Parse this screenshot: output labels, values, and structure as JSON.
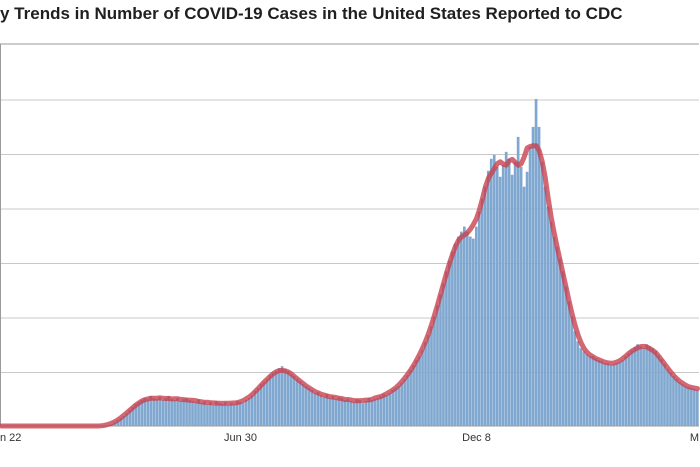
{
  "chart_data": {
    "type": "bar",
    "title": "y Trends in Number of COVID-19 Cases in the United States Reported to CDC",
    "x_tick_labels": [
      "n 22",
      "Jun 30",
      "Dec 8",
      "M"
    ],
    "y_tick_labels": [],
    "grid": true,
    "legend": "none",
    "colors": {
      "bars": "#7fa7cf",
      "bar_edge": "#5b86b3",
      "average_line": "#c8414f"
    },
    "series": [
      {
        "kind": "bar",
        "values": [
          0,
          0,
          0,
          0,
          0,
          0,
          0,
          0,
          0,
          0,
          0,
          0,
          0,
          0,
          0,
          0,
          0,
          0,
          0,
          0,
          0,
          0,
          0,
          0,
          0,
          0,
          0,
          0,
          0,
          0,
          0,
          0,
          0,
          0,
          0,
          0,
          1,
          2,
          4,
          6,
          8,
          10,
          13,
          16,
          19,
          22,
          24,
          26,
          28,
          27,
          30,
          28,
          27,
          29,
          26,
          28,
          30,
          27,
          26,
          28,
          25,
          27,
          28,
          26,
          25,
          24,
          27,
          23,
          25,
          22,
          24,
          21,
          25,
          23,
          22,
          24,
          21,
          23,
          22,
          25,
          24,
          23,
          26,
          28,
          31,
          35,
          38,
          42,
          44,
          47,
          51,
          53,
          55,
          58,
          60,
          57,
          55,
          52,
          50,
          47,
          45,
          42,
          40,
          38,
          36,
          33,
          34,
          31,
          29,
          32,
          28,
          30,
          27,
          29,
          28,
          26,
          27,
          25,
          24,
          27,
          26,
          23,
          25,
          28,
          26,
          27,
          28,
          30,
          32,
          31,
          33,
          36,
          38,
          40,
          43,
          47,
          51,
          56,
          61,
          66,
          70,
          76,
          84,
          91,
          100,
          110,
          121,
          132,
          143,
          155,
          166,
          175,
          183,
          190,
          195,
          200,
          195,
          190,
          188,
          200,
          215,
          228,
          240,
          256,
          268,
          272,
          260,
          250,
          262,
          275,
          268,
          252,
          265,
          290,
          260,
          240,
          255,
          280,
          300,
          328,
          300,
          265,
          240,
          220,
          205,
          190,
          180,
          168,
          155,
          140,
          125,
          110,
          95,
          85,
          78,
          75,
          72,
          70,
          70,
          68,
          66,
          65,
          63,
          63,
          61,
          62,
          63,
          64,
          66,
          70,
          73,
          76,
          79,
          82,
          80,
          78,
          82,
          80,
          78,
          75,
          71,
          67,
          62,
          57,
          53,
          50,
          47,
          44,
          42,
          40,
          39,
          38,
          37,
          36
        ]
      },
      {
        "kind": "line",
        "name": "",
        "values": [
          0,
          0,
          0,
          0,
          0,
          0,
          0,
          0,
          0,
          0,
          0,
          0,
          0,
          0,
          0,
          0,
          0,
          0,
          0,
          0,
          0,
          0,
          0,
          0,
          0,
          0,
          0,
          0,
          0,
          0,
          0,
          0,
          0,
          0,
          0,
          0,
          1,
          2,
          4,
          6,
          8,
          10,
          13,
          16,
          19,
          22,
          24,
          26,
          28,
          27,
          30,
          28,
          27,
          29,
          26,
          28,
          30,
          27,
          26,
          28,
          25,
          27,
          28,
          26,
          25,
          24,
          27,
          23,
          25,
          22,
          24,
          21,
          25,
          23,
          22,
          24,
          21,
          23,
          22,
          25,
          24,
          23,
          26,
          28,
          31,
          35,
          38,
          42,
          44,
          47,
          51,
          53,
          55,
          58,
          60,
          57,
          55,
          52,
          50,
          47,
          45,
          42,
          40,
          38,
          36,
          33,
          34,
          31,
          29,
          32,
          28,
          30,
          27,
          29,
          28,
          26,
          27,
          25,
          24,
          27,
          26,
          23,
          25,
          28,
          26,
          27,
          28,
          30,
          32,
          31,
          33,
          36,
          38,
          40,
          43,
          47,
          51,
          56,
          61,
          66,
          70,
          76,
          84,
          91,
          100,
          110,
          121,
          132,
          143,
          155,
          166,
          175,
          183,
          190,
          195,
          200,
          195,
          190,
          188,
          200,
          215,
          228,
          240,
          256,
          268,
          272,
          260,
          250,
          262,
          275,
          268,
          252,
          265,
          290,
          260,
          240,
          255,
          280,
          300,
          328,
          300,
          265,
          240,
          220,
          205,
          190,
          180,
          168,
          155,
          140,
          125,
          110,
          95,
          85,
          78,
          75,
          72,
          70,
          70,
          68,
          66,
          65,
          63,
          63,
          61,
          62,
          63,
          64,
          66,
          70,
          73,
          76,
          79,
          82,
          80,
          78,
          82,
          80,
          78,
          75,
          71,
          67,
          62,
          57,
          53,
          50,
          47,
          44,
          42,
          40,
          39,
          38,
          37,
          36
        ]
      }
    ]
  }
}
